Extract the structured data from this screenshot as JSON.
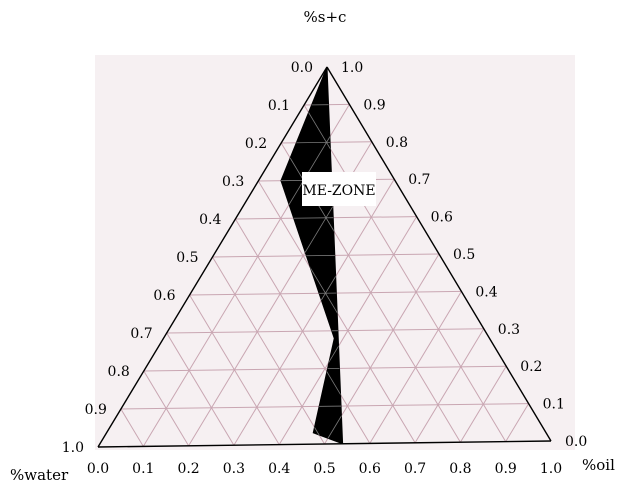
{
  "chart_data": {
    "type": "ternary",
    "corner_labels": {
      "top": "%s+c",
      "bottom_left": "%water",
      "bottom_right": "%oil"
    },
    "bottom_ticks": [
      "0.0",
      "0.1",
      "0.2",
      "0.3",
      "0.4",
      "0.5",
      "0.6",
      "0.7",
      "0.8",
      "0.9",
      "1.0"
    ],
    "left_ticks": [
      "0.0",
      "0.1",
      "0.2",
      "0.3",
      "0.4",
      "0.5",
      "0.6",
      "0.7",
      "0.8",
      "0.9",
      "1.0"
    ],
    "right_ticks": [
      "1.0",
      "0.9",
      "0.8",
      "0.7",
      "0.6",
      "0.5",
      "0.4",
      "0.3",
      "0.2",
      "0.1",
      "0.0"
    ],
    "grid_step": 0.1,
    "grid": true,
    "region": {
      "label": "ME-ZONE",
      "color": "#000000",
      "points_oil_sc": [
        [
          0.0,
          1.0
        ],
        [
          0.05,
          0.7
        ],
        [
          0.38,
          0.28
        ],
        [
          0.46,
          0.03
        ],
        [
          0.54,
          0.0
        ],
        [
          0.0,
          1.0
        ]
      ]
    },
    "colors": {
      "background": "#f6f0f2",
      "grid": "#c9a6b2",
      "region": "#000000",
      "axis": "#000000"
    }
  }
}
